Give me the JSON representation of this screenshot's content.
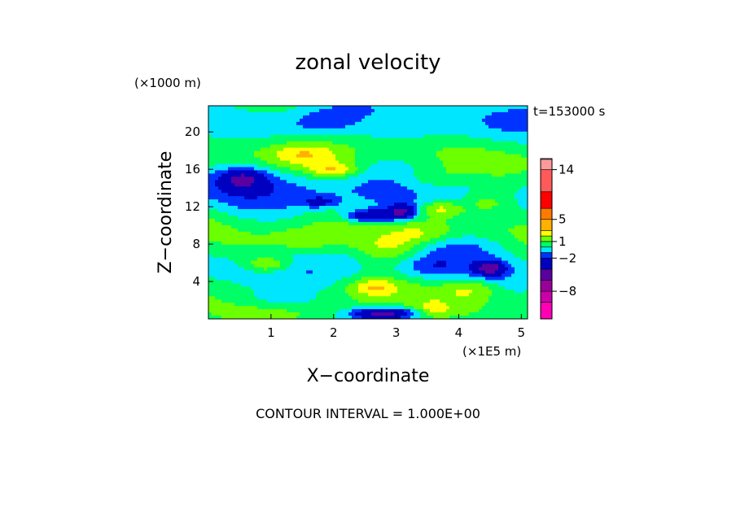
{
  "chart_data": {
    "type": "heatmap",
    "title": "zonal velocity",
    "time_label": "t=153000 s",
    "xlabel": "X−coordinate",
    "ylabel": "Z−coordinate",
    "x_unit": "(×1E5 m)",
    "y_unit": "(×1000 m)",
    "xlim": [
      0,
      5.1
    ],
    "ylim": [
      0,
      22.8
    ],
    "x_ticks": [
      1,
      2,
      3,
      4,
      5
    ],
    "y_ticks": [
      4,
      8,
      12,
      16,
      20
    ],
    "contour_interval_label": "CONTOUR INTERVAL = 1.000E+00",
    "colorbar": {
      "levels": [
        -13,
        -10,
        -8,
        -6,
        -4,
        -2,
        -1,
        0,
        1,
        2,
        3,
        5,
        7,
        10,
        14,
        16
      ],
      "colors": [
        "#ff00b4",
        "#cc00aa",
        "#9a009a",
        "#5a00a0",
        "#0000c0",
        "#0033ff",
        "#00e6ff",
        "#00ff66",
        "#6cff00",
        "#ffff00",
        "#ffb000",
        "#ff7a00",
        "#ff0000",
        "#ff5a5a",
        "#ff9a9a",
        "#ffd2d2"
      ],
      "tick_labels": [
        {
          "label": "14",
          "value": 14
        },
        {
          "label": "5",
          "value": 5
        },
        {
          "label": "1",
          "value": 1
        },
        {
          "label": "−2",
          "value": -2
        },
        {
          "label": "−8",
          "value": -8
        }
      ]
    },
    "features": [
      {
        "x": 0.55,
        "z": 15.0,
        "rx": 0.35,
        "rz": 1.1,
        "v": -3.5
      },
      {
        "x": 0.85,
        "z": 14.5,
        "rx": 0.9,
        "rz": 2.2,
        "v": -1.5
      },
      {
        "x": 1.5,
        "z": 17.6,
        "rx": 0.55,
        "rz": 1.2,
        "v": 1.8
      },
      {
        "x": 2.0,
        "z": 15.9,
        "rx": 0.4,
        "rz": 0.8,
        "v": 2.5
      },
      {
        "x": 1.8,
        "z": 12.5,
        "rx": 0.3,
        "rz": 0.6,
        "v": -2.2
      },
      {
        "x": 2.6,
        "z": 11.0,
        "rx": 0.4,
        "rz": 0.7,
        "v": -4.5
      },
      {
        "x": 3.1,
        "z": 11.5,
        "rx": 0.25,
        "rz": 0.8,
        "v": -4.0
      },
      {
        "x": 2.8,
        "z": 12.5,
        "rx": 0.7,
        "rz": 1.8,
        "v": -1.3
      },
      {
        "x": 3.7,
        "z": 11.8,
        "rx": 0.35,
        "rz": 0.8,
        "v": 2.2
      },
      {
        "x": 3.6,
        "z": 15.0,
        "rx": 0.5,
        "rz": 1.3,
        "v": 1.4
      },
      {
        "x": 4.45,
        "z": 12.5,
        "rx": 0.4,
        "rz": 1.2,
        "v": 1.6
      },
      {
        "x": 0.95,
        "z": 5.8,
        "rx": 0.35,
        "rz": 0.8,
        "v": 2.3
      },
      {
        "x": 1.6,
        "z": 8.5,
        "rx": 0.6,
        "rz": 1.0,
        "v": 1.0
      },
      {
        "x": 2.9,
        "z": 7.5,
        "rx": 0.55,
        "rz": 1.6,
        "v": 2.3
      },
      {
        "x": 3.4,
        "z": 9.0,
        "rx": 0.5,
        "rz": 1.2,
        "v": 1.6
      },
      {
        "x": 2.65,
        "z": 3.4,
        "rx": 0.35,
        "rz": 0.9,
        "v": 2.0
      },
      {
        "x": 4.2,
        "z": 3.2,
        "rx": 0.45,
        "rz": 1.2,
        "v": 2.0
      },
      {
        "x": 4.15,
        "z": 7.8,
        "rx": 0.8,
        "rz": 1.6,
        "v": -1.6
      },
      {
        "x": 4.5,
        "z": 5.4,
        "rx": 0.25,
        "rz": 0.8,
        "v": -4.5
      },
      {
        "x": 3.5,
        "z": 5.5,
        "rx": 0.5,
        "rz": 1.2,
        "v": -1.3
      },
      {
        "x": 2.8,
        "z": 0.6,
        "rx": 0.5,
        "rz": 0.6,
        "v": -5.0
      },
      {
        "x": 1.1,
        "z": 2.0,
        "rx": 0.9,
        "rz": 0.9,
        "v": -1.0
      },
      {
        "x": 3.3,
        "z": 19.5,
        "rx": 1.0,
        "rz": 1.6,
        "v": -1.0
      },
      {
        "x": 1.8,
        "z": 21.0,
        "rx": 0.5,
        "rz": 1.4,
        "v": -1.0
      },
      {
        "x": 4.9,
        "z": 21.5,
        "rx": 0.5,
        "rz": 1.2,
        "v": -1.0
      },
      {
        "x": 3.6,
        "z": 1.0,
        "rx": 0.3,
        "rz": 0.9,
        "v": 1.5
      }
    ]
  }
}
